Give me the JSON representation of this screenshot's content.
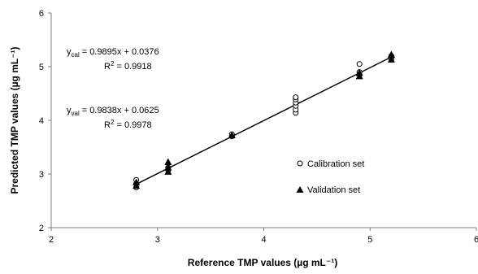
{
  "chart_data": {
    "type": "scatter",
    "title": "",
    "xlabel": "Reference TMP values (µg mL⁻¹)",
    "ylabel": "Predicted TMP values (µg mL⁻¹)",
    "xlim": [
      2,
      6
    ],
    "ylim": [
      2,
      6
    ],
    "x_ticks": [
      2,
      3,
      4,
      5,
      6
    ],
    "y_ticks": [
      2,
      3,
      4,
      5,
      6
    ],
    "grid": false,
    "legend_position": "right",
    "series": [
      {
        "name": "Calibration set",
        "marker": "circle-open",
        "points": [
          {
            "x": 2.8,
            "y": 2.75
          },
          {
            "x": 2.8,
            "y": 2.82
          },
          {
            "x": 2.8,
            "y": 2.89
          },
          {
            "x": 3.1,
            "y": 3.07
          },
          {
            "x": 3.1,
            "y": 3.12
          },
          {
            "x": 3.7,
            "y": 3.7
          },
          {
            "x": 3.7,
            "y": 3.74
          },
          {
            "x": 4.3,
            "y": 4.14
          },
          {
            "x": 4.3,
            "y": 4.2
          },
          {
            "x": 4.3,
            "y": 4.27
          },
          {
            "x": 4.3,
            "y": 4.33
          },
          {
            "x": 4.3,
            "y": 4.39
          },
          {
            "x": 4.3,
            "y": 4.43
          },
          {
            "x": 4.9,
            "y": 4.85
          },
          {
            "x": 4.9,
            "y": 4.9
          },
          {
            "x": 4.9,
            "y": 5.05
          },
          {
            "x": 5.2,
            "y": 5.15
          },
          {
            "x": 5.2,
            "y": 5.2
          }
        ]
      },
      {
        "name": "Validation set",
        "marker": "triangle-filled",
        "points": [
          {
            "x": 2.8,
            "y": 2.78
          },
          {
            "x": 2.8,
            "y": 2.84
          },
          {
            "x": 3.1,
            "y": 3.04
          },
          {
            "x": 3.1,
            "y": 3.12
          },
          {
            "x": 3.1,
            "y": 3.22
          },
          {
            "x": 3.7,
            "y": 3.72
          },
          {
            "x": 4.9,
            "y": 4.82
          },
          {
            "x": 4.9,
            "y": 4.88
          },
          {
            "x": 5.2,
            "y": 5.13
          },
          {
            "x": 5.2,
            "y": 5.22
          }
        ]
      }
    ],
    "fit_line": {
      "x": [
        2.8,
        5.2
      ],
      "y": [
        2.81,
        5.18
      ]
    },
    "annotations": {
      "cal_eq_label": "y",
      "cal_eq_sub": "cal",
      "cal_eq_rest": " = 0.9895x + 0.0376",
      "cal_r2_label": "R",
      "cal_r2_sup": "2",
      "cal_r2_rest": " = 0.9918",
      "val_eq_label": "y",
      "val_eq_sub": "val",
      "val_eq_rest": " = 0.9838x + 0.0625",
      "val_r2_label": "R",
      "val_r2_sup": "2",
      "val_r2_rest": " = 0.9978"
    },
    "colors": {
      "axis": "#7f7f7f",
      "marker": "#000000",
      "line": "#000000"
    }
  }
}
